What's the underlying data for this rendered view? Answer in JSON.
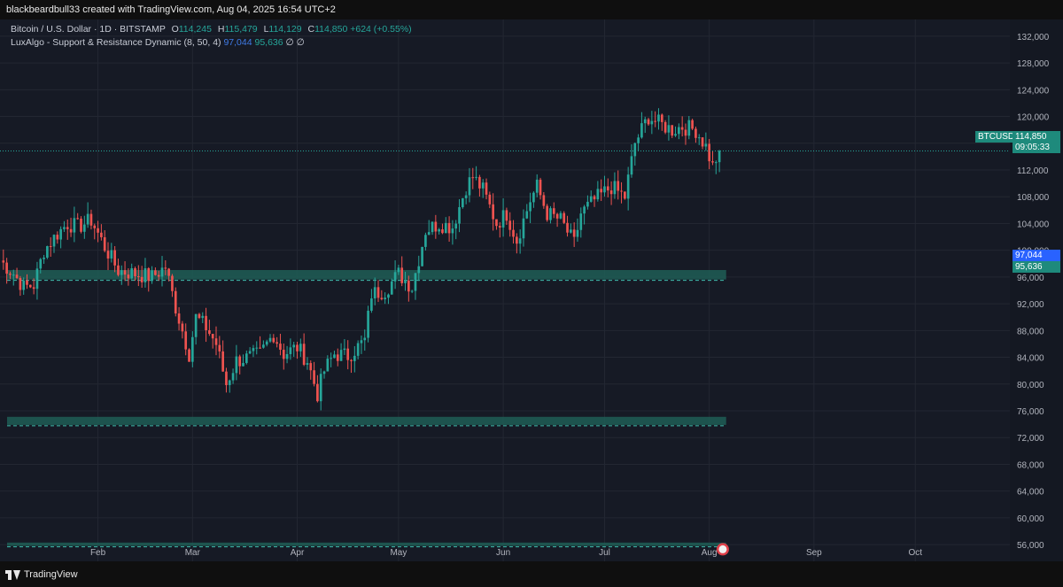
{
  "header": {
    "attribution": "blackbeardbull33 created with TradingView.com, Aug 04, 2025 16:54 UTC+2"
  },
  "legend": {
    "symbol": "Bitcoin / U.S. Dollar · 1D · BITSTAMP",
    "o_label": "O",
    "o_value": "114,245",
    "h_label": "H",
    "h_value": "115,479",
    "l_label": "L",
    "l_value": "114,129",
    "c_label": "C",
    "c_value": "114,850",
    "change": "+624 (+0.55%)",
    "indicator": "LuxAlgo - Support & Resistance Dynamic (8, 50, 4)",
    "ind_value_1": "97,044",
    "ind_value_2": "95,636",
    "ind_extra": "∅ ∅"
  },
  "price_labels": {
    "symbol_tag": "BTCUSD",
    "last_price": "114,850",
    "countdown": "09:05:33",
    "level_1": "97,044",
    "level_2": "95,636"
  },
  "footer": {
    "brand": "TradingView"
  },
  "colors": {
    "up": "#26a69a",
    "down": "#ef5350",
    "zone": "#1e5e56",
    "blue_tag": "#2962ff",
    "grid": "#232732"
  },
  "chart_data": {
    "type": "candlestick",
    "title": "Bitcoin / U.S. Dollar · 1D · BITSTAMP",
    "y_ticks": [
      56000,
      60000,
      64000,
      68000,
      72000,
      76000,
      80000,
      84000,
      88000,
      92000,
      96000,
      100000,
      104000,
      108000,
      112000,
      116000,
      120000,
      124000,
      128000,
      132000
    ],
    "y_tick_labels": [
      "56,000",
      "60,000",
      "64,000",
      "68,000",
      "72,000",
      "76,000",
      "80,000",
      "84,000",
      "88,000",
      "92,000",
      "96,000",
      "100,000",
      "104,000",
      "108,000",
      "112,000",
      "116,000",
      "120,000",
      "124,000",
      "128,000",
      "132,000"
    ],
    "ylim": [
      53500,
      134500
    ],
    "x_labels": [
      "Feb",
      "Mar",
      "Apr",
      "May",
      "Jun",
      "Jul",
      "Aug",
      "Sep",
      "Oct"
    ],
    "x_label_dates": [
      "2025-02-01",
      "2025-03-01",
      "2025-04-01",
      "2025-05-01",
      "2025-06-01",
      "2025-07-01",
      "2025-08-01",
      "2025-09-01",
      "2025-10-01"
    ],
    "xlim": [
      "2025-01-03",
      "2025-10-29"
    ],
    "last_price": 114850,
    "zones": [
      {
        "top": 97044,
        "bottom": 95636
      },
      {
        "top": 75100,
        "bottom": 73900
      },
      {
        "top": 56300,
        "bottom": 55800
      }
    ],
    "zone_end_date": "2025-08-06",
    "series": [
      {
        "name": "BTCUSD",
        "close_points": [
          [
            "2025-01-03",
            98500
          ],
          [
            "2025-01-07",
            96500
          ],
          [
            "2025-01-10",
            94500
          ],
          [
            "2025-01-13",
            94800
          ],
          [
            "2025-01-16",
            100000
          ],
          [
            "2025-01-20",
            102500
          ],
          [
            "2025-01-23",
            104000
          ],
          [
            "2025-01-26",
            103500
          ],
          [
            "2025-01-30",
            104500
          ],
          [
            "2025-02-03",
            100500
          ],
          [
            "2025-02-07",
            97000
          ],
          [
            "2025-02-12",
            96500
          ],
          [
            "2025-02-17",
            96000
          ],
          [
            "2025-02-21",
            97500
          ],
          [
            "2025-02-24",
            91500
          ],
          [
            "2025-02-28",
            84500
          ],
          [
            "2025-03-02",
            90000
          ],
          [
            "2025-03-05",
            88500
          ],
          [
            "2025-03-08",
            86000
          ],
          [
            "2025-03-11",
            80000
          ],
          [
            "2025-03-14",
            83500
          ],
          [
            "2025-03-18",
            84000
          ],
          [
            "2025-03-21",
            84500
          ],
          [
            "2025-03-25",
            87500
          ],
          [
            "2025-03-28",
            84500
          ],
          [
            "2025-04-01",
            85500
          ],
          [
            "2025-04-04",
            83500
          ],
          [
            "2025-04-07",
            78500
          ],
          [
            "2025-04-09",
            82000
          ],
          [
            "2025-04-12",
            84500
          ],
          [
            "2025-04-16",
            84200
          ],
          [
            "2025-04-21",
            86500
          ],
          [
            "2025-04-23",
            93500
          ],
          [
            "2025-04-27",
            94000
          ],
          [
            "2025-05-01",
            96500
          ],
          [
            "2025-05-05",
            94500
          ],
          [
            "2025-05-09",
            103000
          ],
          [
            "2025-05-13",
            104000
          ],
          [
            "2025-05-17",
            103500
          ],
          [
            "2025-05-21",
            109500
          ],
          [
            "2025-05-23",
            111000
          ],
          [
            "2025-05-26",
            109000
          ],
          [
            "2025-05-30",
            104000
          ],
          [
            "2025-06-02",
            105500
          ],
          [
            "2025-06-05",
            101500
          ],
          [
            "2025-06-09",
            107500
          ],
          [
            "2025-06-11",
            109500
          ],
          [
            "2025-06-14",
            105500
          ],
          [
            "2025-06-18",
            104500
          ],
          [
            "2025-06-22",
            101000
          ],
          [
            "2025-06-24",
            105500
          ],
          [
            "2025-06-28",
            107500
          ],
          [
            "2025-07-03",
            109500
          ],
          [
            "2025-07-07",
            108000
          ],
          [
            "2025-07-10",
            116000
          ],
          [
            "2025-07-14",
            120000
          ],
          [
            "2025-07-17",
            119000
          ],
          [
            "2025-07-21",
            118000
          ],
          [
            "2025-07-24",
            118500
          ],
          [
            "2025-07-28",
            118000
          ],
          [
            "2025-07-31",
            115500
          ],
          [
            "2025-08-02",
            112500
          ],
          [
            "2025-08-04",
            114850
          ]
        ]
      }
    ]
  }
}
